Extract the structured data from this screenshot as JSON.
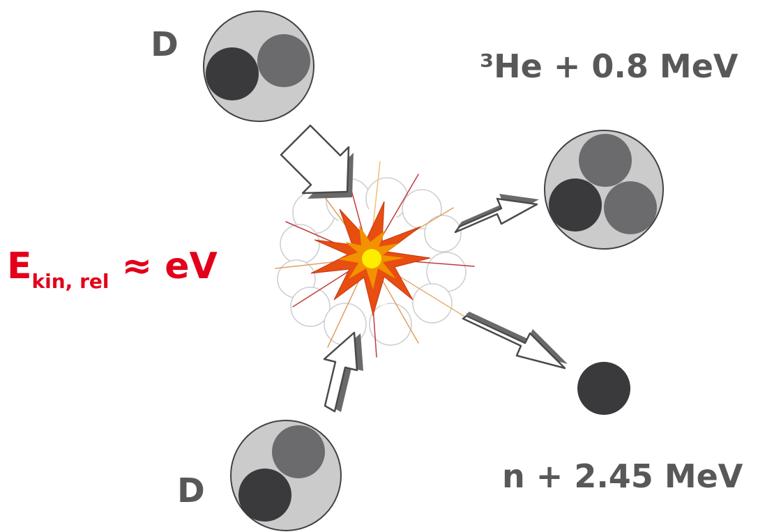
{
  "labels": {
    "deuteron_top": "D",
    "deuteron_bottom": "D",
    "helium3_product": "³He + 0.8 MeV",
    "neutron_product": "n + 2.45 MeV",
    "energy_main": "E",
    "energy_subscript": "kin, rel",
    "energy_rest": " ≈ eV"
  },
  "colors": {
    "label_gray": "#58585a",
    "energy_red": "#e2001a",
    "nucleus_shell_fill": "#cbcbcc",
    "nucleus_shell_stroke": "#424244",
    "proton": "#3a3a3d",
    "neutron_light": "#6b6b6e",
    "arrow_stroke": "#4a4a4a",
    "arrow_shadow": "#6a6a6a",
    "burst_outer": "#e84e0f",
    "burst_mid": "#f39200",
    "burst_core": "#ffed00"
  }
}
